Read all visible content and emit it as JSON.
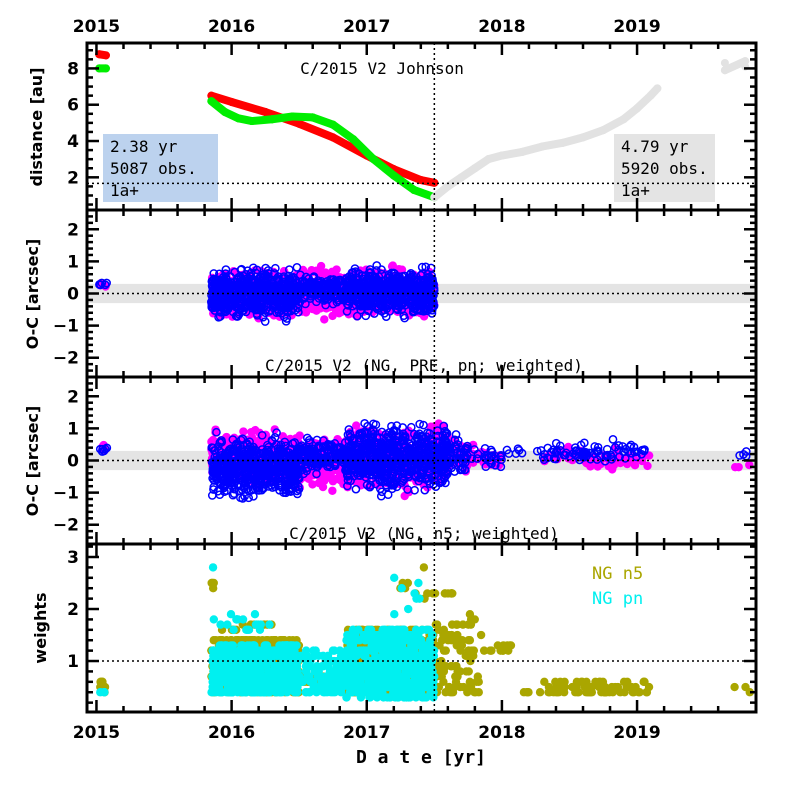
{
  "chart_data": [
    {
      "type": "line",
      "panel": "distance",
      "ylabel": "distance [au]",
      "title": "C/2015 V2 Johnson",
      "xlim": [
        2014.93,
        2019.88
      ],
      "ylim": [
        0.2,
        9.4
      ],
      "yticks": [
        2,
        4,
        6,
        8
      ],
      "xticks": [
        "2015",
        "2016",
        "2017",
        "2018",
        "2019"
      ],
      "reference_line_y": 1.67,
      "reference_line_x": 2017.5,
      "boxes": [
        {
          "lines": [
            "2.38 yr",
            "5087 obs.",
            "1a+"
          ],
          "color": "#bcd2ee",
          "position": "bottom-left"
        },
        {
          "lines": [
            "4.79 yr",
            "5920 obs.",
            "1a+"
          ],
          "color": "#e4e4e4",
          "position": "bottom-right"
        }
      ],
      "series": [
        {
          "color": "#ff0000",
          "points": [
            [
              2015.02,
              8.78
            ],
            [
              2015.07,
              8.72
            ],
            [
              2015.85,
              6.5
            ],
            [
              2016.0,
              6.15
            ],
            [
              2016.25,
              5.6
            ],
            [
              2016.5,
              4.95
            ],
            [
              2016.75,
              4.2
            ],
            [
              2017.0,
              3.2
            ],
            [
              2017.2,
              2.45
            ],
            [
              2017.4,
              1.85
            ],
            [
              2017.5,
              1.7
            ]
          ]
        },
        {
          "color": "#00ee00",
          "points": [
            [
              2015.02,
              8.0
            ],
            [
              2015.07,
              8.0
            ],
            [
              2015.85,
              6.2
            ],
            [
              2015.95,
              5.6
            ],
            [
              2016.05,
              5.25
            ],
            [
              2016.15,
              5.1
            ],
            [
              2016.3,
              5.2
            ],
            [
              2016.45,
              5.35
            ],
            [
              2016.6,
              5.3
            ],
            [
              2016.75,
              4.9
            ],
            [
              2016.9,
              4.1
            ],
            [
              2017.05,
              3.0
            ],
            [
              2017.2,
              2.1
            ],
            [
              2017.35,
              1.3
            ],
            [
              2017.5,
              0.9
            ]
          ]
        },
        {
          "color": "#e2e2e2",
          "points": [
            [
              2017.5,
              0.9
            ],
            [
              2017.6,
              1.5
            ],
            [
              2017.7,
              2.0
            ],
            [
              2017.8,
              2.5
            ],
            [
              2017.9,
              3.0
            ],
            [
              2018.0,
              3.2
            ],
            [
              2018.15,
              3.4
            ],
            [
              2018.3,
              3.7
            ],
            [
              2018.45,
              3.9
            ],
            [
              2018.6,
              4.2
            ],
            [
              2018.75,
              4.6
            ],
            [
              2018.9,
              5.2
            ],
            [
              2019.0,
              5.8
            ],
            [
              2019.1,
              6.5
            ],
            [
              2019.15,
              6.9
            ],
            [
              2019.65,
              8.3
            ],
            [
              2019.65,
              7.9
            ],
            [
              2019.8,
              8.4
            ],
            [
              2019.8,
              8.1
            ]
          ]
        }
      ]
    },
    {
      "type": "scatter",
      "panel": "oc-pre-pn",
      "ylabel": "O-C [arcsec]",
      "title": "C/2015 V2 (NG, PRE, pn; weighted)",
      "ylim": [
        -2.6,
        2.6
      ],
      "yticks": [
        -2,
        -1,
        0,
        1,
        2
      ],
      "band": [
        -0.3,
        0.3
      ],
      "series": [
        {
          "color": "#ff00ff",
          "style": "filled",
          "clouds": [
            [
              2015.02,
              2015.08,
              0.15,
              0.35,
              6
            ],
            [
              2015.85,
              2016.5,
              -0.9,
              0.9,
              500
            ],
            [
              2016.5,
              2016.85,
              -1.1,
              1.0,
              200
            ],
            [
              2016.85,
              2017.5,
              -1.0,
              1.0,
              450
            ]
          ]
        },
        {
          "color": "#0000ff",
          "style": "open",
          "clouds": [
            [
              2015.02,
              2015.08,
              0.2,
              0.4,
              6
            ],
            [
              2015.85,
              2016.5,
              -1.0,
              1.0,
              600
            ],
            [
              2016.5,
              2016.85,
              -0.5,
              0.7,
              150
            ],
            [
              2016.85,
              2017.5,
              -0.9,
              1.0,
              600
            ]
          ]
        }
      ]
    },
    {
      "type": "scatter",
      "panel": "oc-n5",
      "ylabel": "O-C [arcsec]",
      "title": "C/2015 V2 (NG, n5; weighted)",
      "ylim": [
        -2.6,
        2.6
      ],
      "yticks": [
        -2,
        -1,
        0,
        1,
        2
      ],
      "band": [
        -0.3,
        0.3
      ],
      "series": [
        {
          "color": "#ff00ff",
          "style": "filled",
          "clouds": [
            [
              2015.02,
              2015.08,
              0.2,
              0.65,
              6
            ],
            [
              2015.85,
              2016.5,
              -0.9,
              1.1,
              500
            ],
            [
              2016.5,
              2016.85,
              -1.0,
              0.9,
              200
            ],
            [
              2016.85,
              2017.6,
              -1.2,
              1.3,
              500
            ],
            [
              2017.6,
              2017.75,
              -0.6,
              0.9,
              60
            ],
            [
              2017.75,
              2018.0,
              -0.3,
              0.5,
              30
            ],
            [
              2018.3,
              2018.6,
              -0.2,
              0.5,
              25
            ],
            [
              2018.6,
              2019.1,
              -0.4,
              0.4,
              45
            ],
            [
              2019.7,
              2019.85,
              -0.35,
              0.0,
              3
            ]
          ]
        },
        {
          "color": "#0000ff",
          "style": "open",
          "clouds": [
            [
              2015.02,
              2015.08,
              0.25,
              0.45,
              6
            ],
            [
              2015.85,
              2016.5,
              -1.4,
              1.0,
              600
            ],
            [
              2016.5,
              2016.85,
              -0.6,
              0.8,
              150
            ],
            [
              2016.85,
              2017.6,
              -1.2,
              1.4,
              650
            ],
            [
              2017.6,
              2017.75,
              -0.6,
              0.9,
              50
            ],
            [
              2017.75,
              2018.0,
              -0.4,
              0.6,
              25
            ],
            [
              2018.0,
              2018.3,
              0.1,
              0.45,
              8
            ],
            [
              2018.3,
              2018.6,
              -0.2,
              0.7,
              30
            ],
            [
              2018.6,
              2019.1,
              -0.3,
              0.8,
              50
            ],
            [
              2019.7,
              2019.85,
              0.0,
              0.4,
              4
            ]
          ]
        }
      ]
    },
    {
      "type": "scatter",
      "panel": "weights",
      "ylabel": "weights",
      "xlabel": "D a t e [yr]",
      "ylim": [
        0.02,
        3.25
      ],
      "yticks": [
        1,
        2,
        3
      ],
      "reference_line_y": 1.0,
      "series": [
        {
          "name": "NG n5",
          "color": "#aaa600",
          "clouds": [
            [
              2015.02,
              2015.08,
              0.4,
              0.65,
              8
            ],
            [
              2015.85,
              2015.87,
              2.2,
              2.65,
              4
            ],
            [
              2015.85,
              2016.5,
              0.4,
              1.45,
              500
            ],
            [
              2015.85,
              2016.3,
              1.6,
              1.7,
              12
            ],
            [
              2016.5,
              2016.85,
              0.55,
              0.75,
              60
            ],
            [
              2016.85,
              2017.5,
              0.35,
              1.6,
              500
            ],
            [
              2017.2,
              2017.45,
              2.1,
              3.0,
              8
            ],
            [
              2017.45,
              2017.65,
              2.25,
              2.3,
              10
            ],
            [
              2017.5,
              2017.85,
              0.35,
              1.9,
              90
            ],
            [
              2017.85,
              2018.1,
              1.2,
              1.3,
              12
            ],
            [
              2018.15,
              2018.3,
              0.4,
              0.45,
              5
            ],
            [
              2018.3,
              2019.1,
              0.35,
              0.6,
              70
            ],
            [
              2019.7,
              2019.85,
              0.35,
              0.5,
              3
            ]
          ]
        },
        {
          "name": "NG pn",
          "color": "#00f0f0",
          "clouds": [
            [
              2015.02,
              2015.06,
              0.3,
              0.4,
              3
            ],
            [
              2015.85,
              2015.87,
              2.8,
              2.8,
              1
            ],
            [
              2015.85,
              2016.3,
              1.6,
              1.9,
              20
            ],
            [
              2015.85,
              2016.5,
              0.35,
              1.3,
              500
            ],
            [
              2016.5,
              2016.85,
              0.35,
              1.2,
              100
            ],
            [
              2016.85,
              2017.5,
              0.3,
              1.6,
              500
            ],
            [
              2017.2,
              2017.45,
              1.85,
              2.8,
              8
            ]
          ]
        }
      ]
    }
  ]
}
